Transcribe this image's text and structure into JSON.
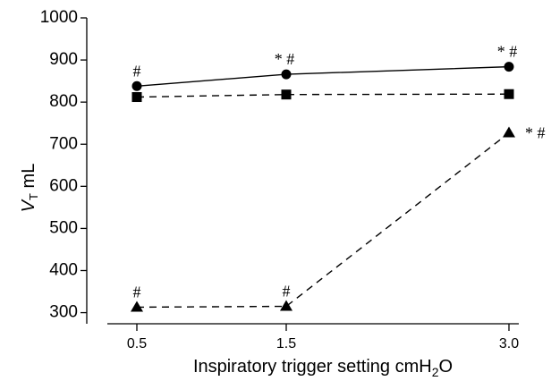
{
  "chart_data": {
    "type": "line",
    "x": [
      0.5,
      1.5,
      3.0
    ],
    "x_tick_labels": [
      "0.5",
      "1.5",
      "3.0"
    ],
    "xlabel": "Inspiratory trigger setting cmH2O",
    "xlabel_parts": {
      "main": "Inspiratory trigger setting cmH",
      "sub": "2",
      "tail": "O"
    },
    "ylabel": "VT mL",
    "ylabel_parts": {
      "italic": "V",
      "sub": "T",
      "rest": " mL"
    },
    "ylim": [
      280,
      1000
    ],
    "y_ticks": [
      300,
      400,
      500,
      600,
      700,
      800,
      900,
      1000
    ],
    "y_tick_labels": [
      "300",
      "400",
      "500",
      "600",
      "700",
      "800",
      "900",
      "1000"
    ],
    "series": [
      {
        "marker": "circle",
        "line": "solid",
        "values": [
          838,
          866,
          884
        ],
        "annotations": [
          "#",
          "* #",
          "* #"
        ]
      },
      {
        "marker": "square",
        "line": "dashed",
        "values": [
          812,
          818,
          819
        ],
        "annotations": [
          "",
          "",
          ""
        ]
      },
      {
        "marker": "triangle",
        "line": "dashed",
        "values": [
          313,
          315,
          727
        ],
        "annotations": [
          "#",
          "#",
          "* #"
        ]
      }
    ]
  }
}
